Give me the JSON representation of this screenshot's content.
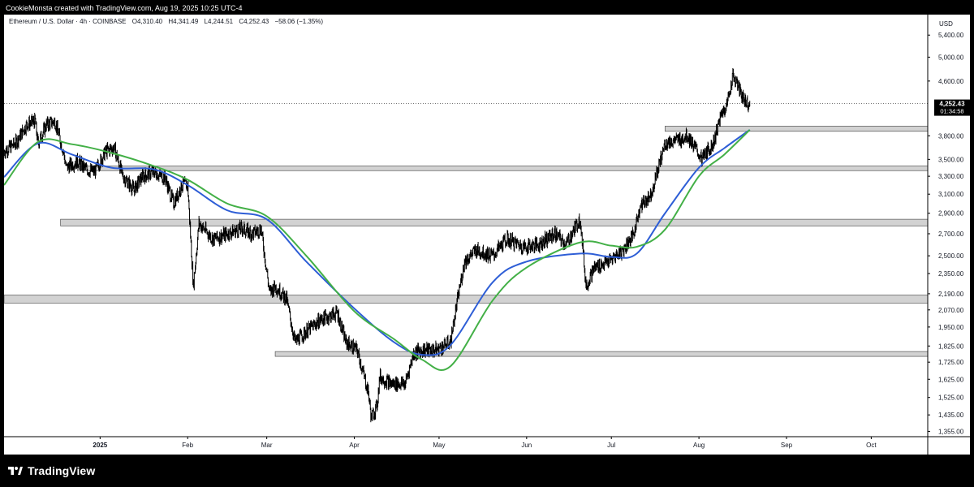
{
  "header": {
    "caption": "CookieMonsta created with TradingView.com, Aug 19, 2025 10:25 UTC-4"
  },
  "legend": {
    "symbol": "Ethereum / U.S. Dollar · 4h · COINBASE",
    "open": "O4,310.40",
    "high": "H4,341.49",
    "low": "L4,244.51",
    "close": "C4,252.43",
    "change": "−58.06 (−1.35%)"
  },
  "price_axis": {
    "currency": "USD",
    "current_price": "4,252.43",
    "countdown": "01:34:58"
  },
  "brand": {
    "name": "TradingView"
  },
  "colors": {
    "background": "#000000",
    "panel": "#ffffff",
    "candles": "#000000",
    "ma_fast": "#2e5ed6",
    "ma_slow": "#43b047",
    "zones": "#d2d2d2",
    "price_tag": "#000000"
  },
  "chart_data": {
    "type": "line",
    "y_scale": "log",
    "ylim": [
      1330,
      5800
    ],
    "xlim": [
      "2024-11-28",
      "2025-10-21"
    ],
    "y_ticks": [
      "5,400.00",
      "5,000.00",
      "4,600.00",
      "3,800.00",
      "3,500.00",
      "3,300.00",
      "3,100.00",
      "2,900.00",
      "2,700.00",
      "2,500.00",
      "2,350.00",
      "2,190.00",
      "2,070.00",
      "1,950.00",
      "1,825.00",
      "1,725.00",
      "1,625.00",
      "1,525.00",
      "1,435.00",
      "1,355.00"
    ],
    "x_ticks": [
      {
        "label": "2025",
        "date": "2025-01-01"
      },
      {
        "label": "Feb",
        "date": "2025-02-01"
      },
      {
        "label": "Mar",
        "date": "2025-03-01"
      },
      {
        "label": "Apr",
        "date": "2025-04-01"
      },
      {
        "label": "May",
        "date": "2025-05-01"
      },
      {
        "label": "Jun",
        "date": "2025-06-01"
      },
      {
        "label": "Jul",
        "date": "2025-07-01"
      },
      {
        "label": "Aug",
        "date": "2025-08-01"
      },
      {
        "label": "Sep",
        "date": "2025-09-01"
      },
      {
        "label": "Oct",
        "date": "2025-10-01"
      }
    ],
    "last_price": 4252.43,
    "series": [
      {
        "kind": "price",
        "x": [
          "2024-11-28",
          "2024-12-02",
          "2024-12-06",
          "2024-12-09",
          "2024-12-10",
          "2024-12-13",
          "2024-12-16",
          "2024-12-19",
          "2024-12-20",
          "2024-12-24",
          "2024-12-27",
          "2024-12-30",
          "2025-01-03",
          "2025-01-06",
          "2025-01-09",
          "2025-01-13",
          "2025-01-16",
          "2025-01-20",
          "2025-01-24",
          "2025-01-27",
          "2025-01-30",
          "2025-02-01",
          "2025-02-03",
          "2025-02-05",
          "2025-02-10",
          "2025-02-15",
          "2025-02-20",
          "2025-02-24",
          "2025-02-27",
          "2025-03-02",
          "2025-03-04",
          "2025-03-08",
          "2025-03-11",
          "2025-03-15",
          "2025-03-20",
          "2025-03-26",
          "2025-03-29",
          "2025-04-02",
          "2025-04-06",
          "2025-04-07",
          "2025-04-09",
          "2025-04-10",
          "2025-04-14",
          "2025-04-19",
          "2025-04-22",
          "2025-04-25",
          "2025-04-30",
          "2025-05-05",
          "2025-05-08",
          "2025-05-10",
          "2025-05-14",
          "2025-05-20",
          "2025-05-25",
          "2025-05-31",
          "2025-06-05",
          "2025-06-11",
          "2025-06-15",
          "2025-06-20",
          "2025-06-22",
          "2025-06-25",
          "2025-06-30",
          "2025-07-05",
          "2025-07-09",
          "2025-07-11",
          "2025-07-15",
          "2025-07-20",
          "2025-07-25",
          "2025-07-28",
          "2025-08-02",
          "2025-08-06",
          "2025-08-09",
          "2025-08-11",
          "2025-08-13",
          "2025-08-15",
          "2025-08-17",
          "2025-08-19"
        ],
        "y": [
          3600,
          3700,
          3950,
          4000,
          3700,
          3950,
          4000,
          3600,
          3400,
          3480,
          3380,
          3350,
          3600,
          3650,
          3300,
          3150,
          3300,
          3350,
          3280,
          3000,
          3200,
          3200,
          2250,
          2800,
          2650,
          2700,
          2750,
          2700,
          2750,
          2200,
          2250,
          2150,
          1850,
          1920,
          2000,
          2050,
          1850,
          1800,
          1550,
          1420,
          1480,
          1640,
          1600,
          1600,
          1780,
          1800,
          1800,
          1850,
          2200,
          2450,
          2550,
          2500,
          2650,
          2580,
          2600,
          2700,
          2600,
          2850,
          2250,
          2400,
          2450,
          2550,
          2700,
          2960,
          3100,
          3700,
          3750,
          3800,
          3500,
          3700,
          4100,
          4250,
          4700,
          4500,
          4300,
          4252
        ]
      },
      {
        "kind": "moving_average",
        "color": "#2e5ed6",
        "x": [
          "2024-11-28",
          "2024-12-10",
          "2024-12-22",
          "2025-01-05",
          "2025-01-20",
          "2025-02-01",
          "2025-02-15",
          "2025-03-01",
          "2025-03-15",
          "2025-04-01",
          "2025-04-15",
          "2025-04-25",
          "2025-05-05",
          "2025-05-20",
          "2025-06-01",
          "2025-06-20",
          "2025-07-01",
          "2025-07-10",
          "2025-07-20",
          "2025-08-01",
          "2025-08-10",
          "2025-08-19"
        ],
        "y": [
          3290,
          3700,
          3560,
          3400,
          3380,
          3200,
          2930,
          2840,
          2450,
          2080,
          1850,
          1770,
          1830,
          2280,
          2450,
          2520,
          2490,
          2520,
          2900,
          3400,
          3640,
          3880
        ]
      },
      {
        "kind": "moving_average",
        "color": "#43b047",
        "x": [
          "2024-11-28",
          "2024-12-10",
          "2024-12-22",
          "2025-01-05",
          "2025-01-20",
          "2025-02-01",
          "2025-02-15",
          "2025-03-01",
          "2025-03-15",
          "2025-04-01",
          "2025-04-15",
          "2025-04-25",
          "2025-05-05",
          "2025-05-20",
          "2025-06-01",
          "2025-06-20",
          "2025-07-01",
          "2025-07-10",
          "2025-07-20",
          "2025-08-01",
          "2025-08-10",
          "2025-08-19"
        ],
        "y": [
          3200,
          3720,
          3690,
          3580,
          3420,
          3260,
          3000,
          2870,
          2500,
          2060,
          1870,
          1740,
          1700,
          2140,
          2400,
          2620,
          2590,
          2580,
          2740,
          3300,
          3560,
          3880
        ]
      }
    ],
    "zones": [
      {
        "from": "2025-07-20",
        "to": "2025-10-21",
        "low": 3860,
        "high": 3930
      },
      {
        "from": "2024-12-24",
        "to": "2025-10-21",
        "low": 3365,
        "high": 3420
      },
      {
        "from": "2024-12-18",
        "to": "2025-10-21",
        "low": 2775,
        "high": 2840
      },
      {
        "from": "2024-11-28",
        "to": "2025-10-21",
        "low": 2120,
        "high": 2180
      },
      {
        "from": "2025-03-04",
        "to": "2025-10-21",
        "low": 1760,
        "high": 1790
      }
    ]
  }
}
